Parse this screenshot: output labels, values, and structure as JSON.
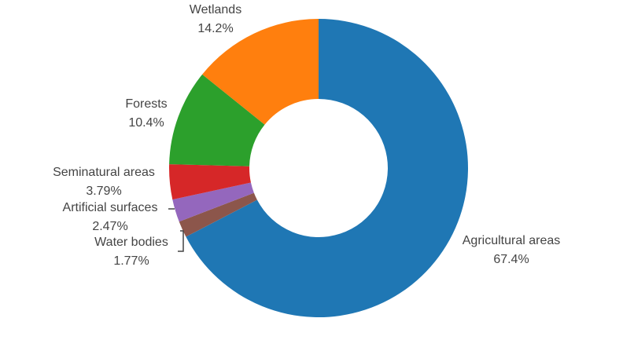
{
  "chart_data": {
    "type": "pie",
    "categories": [
      "Agricultural areas",
      "Water bodies",
      "Artificial surfaces",
      "Seminatural areas",
      "Forests",
      "Wetlands"
    ],
    "values": [
      67.4,
      1.77,
      2.47,
      3.79,
      10.4,
      14.2
    ],
    "value_labels": [
      "67.4%",
      "1.77%",
      "2.47%",
      "3.79%",
      "10.4%",
      "14.2%"
    ],
    "colors": [
      "#1f77b4",
      "#8c564b",
      "#9467bd",
      "#d62728",
      "#2ca02c",
      "#ff7f0e"
    ]
  }
}
